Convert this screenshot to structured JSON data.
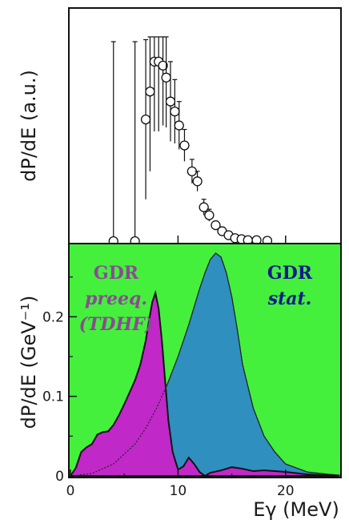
{
  "chart_data": [
    {
      "type": "scatter",
      "ylabel": "dP/dE (a.u.)",
      "xlim": [
        0,
        25
      ],
      "marker": "open-circle",
      "points": [
        {
          "x": 4.0,
          "y": 0.0,
          "err": 1.0
        },
        {
          "x": 6.0,
          "y": 0.0,
          "err": 1.0
        },
        {
          "x": 7.0,
          "y": 0.61,
          "err": 0.4
        },
        {
          "x": 7.4,
          "y": 0.75,
          "err": 0.4
        },
        {
          "x": 7.8,
          "y": 0.9,
          "err": 0.35
        },
        {
          "x": 8.2,
          "y": 0.9,
          "err": 0.35
        },
        {
          "x": 8.6,
          "y": 0.88,
          "err": 0.3
        },
        {
          "x": 8.9,
          "y": 0.82,
          "err": 0.25
        },
        {
          "x": 9.3,
          "y": 0.7,
          "err": 0.2
        },
        {
          "x": 9.7,
          "y": 0.65,
          "err": 0.16
        },
        {
          "x": 10.1,
          "y": 0.58,
          "err": 0.12
        },
        {
          "x": 10.6,
          "y": 0.48,
          "err": 0.08
        },
        {
          "x": 11.3,
          "y": 0.35,
          "err": 0.06
        },
        {
          "x": 11.8,
          "y": 0.3,
          "err": 0.05
        },
        {
          "x": 12.4,
          "y": 0.17,
          "err": 0.04
        },
        {
          "x": 12.9,
          "y": 0.13,
          "err": 0.03
        },
        {
          "x": 13.5,
          "y": 0.08,
          "err": 0.02
        },
        {
          "x": 14.1,
          "y": 0.05,
          "err": 0.02
        },
        {
          "x": 14.7,
          "y": 0.03,
          "err": 0.01
        },
        {
          "x": 15.3,
          "y": 0.015,
          "err": 0.01
        },
        {
          "x": 15.9,
          "y": 0.01,
          "err": 0.005
        },
        {
          "x": 16.5,
          "y": 0.005,
          "err": 0.004
        },
        {
          "x": 17.3,
          "y": 0.005,
          "err": 0.004
        },
        {
          "x": 18.3,
          "y": 0.002,
          "err": 0.003
        }
      ],
      "xticks": [
        10,
        20
      ]
    },
    {
      "type": "area",
      "ylabel": "dP/dE (GeV⁻¹)",
      "xlabel": "Eγ (MeV)",
      "xlim": [
        0,
        25
      ],
      "ylim": [
        0,
        0.29
      ],
      "xticks": [
        "0",
        "10",
        "20"
      ],
      "yticks": [
        "0",
        "0.1",
        "0.2"
      ],
      "background": "#44f03c",
      "annotations": [
        {
          "lines": [
            "GDR",
            "preeq.",
            "(TDHF)"
          ],
          "color": "#8a4a94"
        },
        {
          "lines": [
            "GDR",
            "stat."
          ],
          "color": "#101a8a"
        }
      ],
      "series": [
        {
          "label": "GDR preeq. (TDHF)",
          "color": "#c028c8",
          "x": [
            0,
            0.5,
            1,
            1.5,
            2,
            2.5,
            3,
            3.5,
            4,
            4.5,
            5,
            5.5,
            6,
            6.5,
            7,
            7.3,
            7.6,
            7.9,
            8.2,
            8.5,
            8.8,
            9.1,
            9.5,
            10,
            10.5,
            11,
            11.5,
            12,
            12.5,
            13,
            14,
            15,
            16,
            17,
            18,
            20,
            22,
            25
          ],
          "y": [
            0,
            0.01,
            0.03,
            0.036,
            0.04,
            0.052,
            0.055,
            0.056,
            0.064,
            0.076,
            0.09,
            0.105,
            0.12,
            0.14,
            0.17,
            0.195,
            0.218,
            0.23,
            0.21,
            0.17,
            0.12,
            0.07,
            0.03,
            0.008,
            0.012,
            0.023,
            0.015,
            0.005,
            0.0,
            0.004,
            0.007,
            0.011,
            0.009,
            0.006,
            0.007,
            0.005,
            0.002,
            0.0
          ]
        },
        {
          "label": "GDR stat.",
          "color": "#2f8fbf",
          "x": [
            0,
            2,
            4,
            6,
            7,
            8,
            9,
            10,
            11,
            12,
            12.5,
            13,
            13.5,
            14,
            14.5,
            15,
            15.5,
            16,
            17,
            18,
            19,
            20,
            22,
            24,
            25
          ],
          "y": [
            0,
            0.003,
            0.015,
            0.04,
            0.06,
            0.085,
            0.115,
            0.15,
            0.19,
            0.235,
            0.255,
            0.272,
            0.28,
            0.275,
            0.255,
            0.225,
            0.185,
            0.14,
            0.085,
            0.05,
            0.03,
            0.015,
            0.005,
            0.002,
            0.001
          ]
        }
      ]
    }
  ]
}
